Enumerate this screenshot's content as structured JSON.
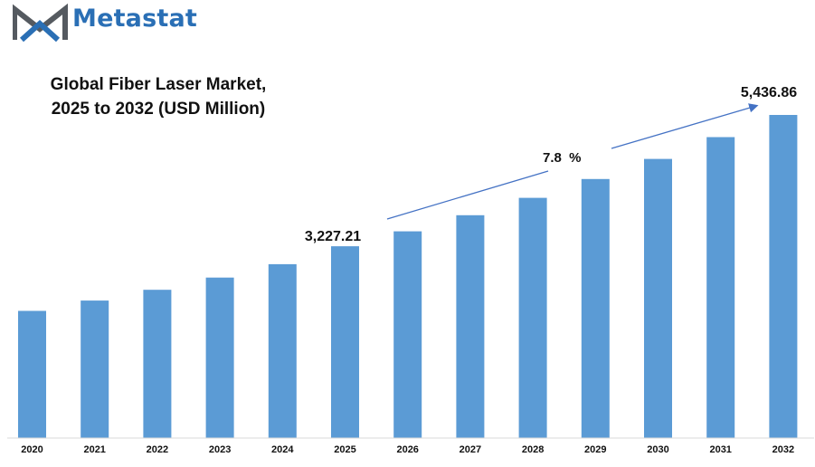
{
  "brand": {
    "name": "Metastat"
  },
  "colors": {
    "bar": "#5b9bd5",
    "brand": "#2a6fb5",
    "arrow": "#4472c4",
    "axis": "#d9d9d9"
  },
  "chart_data": {
    "type": "bar",
    "title_line1": "Global Fiber Laser Market,",
    "title_line2": "2025 to 2032 (USD Million)",
    "categories": [
      "2020",
      "2021",
      "2022",
      "2023",
      "2024",
      "2025",
      "2026",
      "2027",
      "2028",
      "2029",
      "2030",
      "2031",
      "2032"
    ],
    "values": [
      2140,
      2313,
      2494,
      2700,
      2925,
      3227.21,
      3479,
      3750,
      4042,
      4358,
      4697,
      5064,
      5436.86
    ],
    "ylim": [
      0,
      5700
    ],
    "grid": false,
    "legend": "none",
    "annotations": {
      "start_value": "3,227.21",
      "end_value": "5,436.86",
      "cagr": "7.8  %"
    }
  }
}
